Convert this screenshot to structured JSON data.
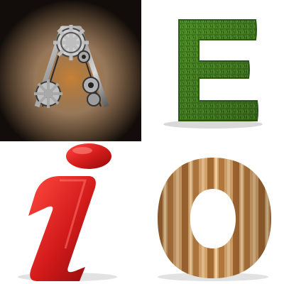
{
  "tiles": [
    {
      "letter": "A",
      "style": "steampunk-gears-metal",
      "background": "#1a1410",
      "glow": "#c47a2a"
    },
    {
      "letter": "E",
      "style": "grass-topiary",
      "background": "#ffffff",
      "fill": "#3f7a1e"
    },
    {
      "letter": "i",
      "style": "glossy-red-3d",
      "background": "#ffffff",
      "fill": "#d21a1a"
    },
    {
      "letter": "O",
      "style": "striped-wood",
      "background": "#ffffff",
      "fill": "#c9925a"
    }
  ]
}
